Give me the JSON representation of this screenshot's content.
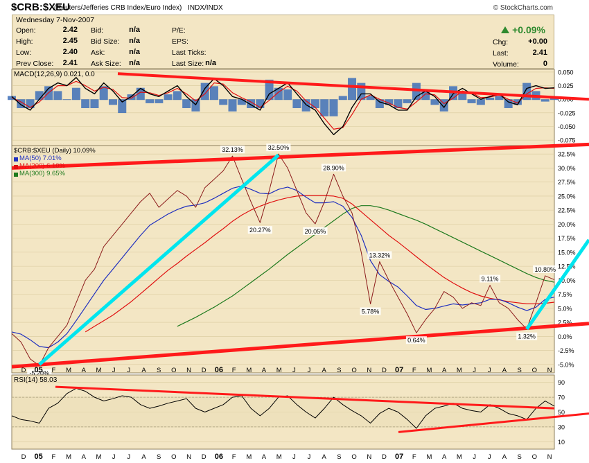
{
  "header": {
    "symbol": "$CRB:$XEU",
    "description": "(Reuters/Jefferies CRB Index/Euro Index)",
    "exchange": "INDX/INDX",
    "brand": "© StockCharts.com",
    "date": "Wednesday  7-Nov-2007"
  },
  "stats": {
    "open_label": "Open:",
    "open": "2.42",
    "high_label": "High:",
    "high": "2.45",
    "low_label": "Low:",
    "low": "2.40",
    "prev_close_label": "Prev Close:",
    "prev_close": "2.41",
    "bid_label": "Bid:",
    "bid": "n/a",
    "bid_size_label": "Bid Size:",
    "bid_size": "n/a",
    "ask_label": "Ask:",
    "ask": "n/a",
    "ask_size_label": "Ask Size:",
    "ask_size": "n/a",
    "pe_label": "P/E:",
    "eps_label": "EPS:",
    "last_ticks_label": "Last Ticks:",
    "last_size_label": "Last Size:",
    "last_size": "n/a",
    "pct_change": "+0.09%",
    "chg_label": "Chg:",
    "chg": "+0.00",
    "last_label": "Last:",
    "last": "2.41",
    "volume_label": "Volume:",
    "volume": "0"
  },
  "colors": {
    "panel_bg": "#f3e6c4",
    "price": "#8b1a1a",
    "ma50": "#1f2fbf",
    "ma200": "#e01010",
    "ma300": "#1e7a1e",
    "trendline_red": "#ff1a1a",
    "trendline_cyan": "#00e5ee",
    "macd_hist": "#3d6fb8",
    "rsi_line": "#000000",
    "gain": "#2f8a2f"
  },
  "chart_data": [
    {
      "type": "line",
      "panel": "MACD",
      "label": "MACD(12,26,9) 0.021, 0.0",
      "ylim": [
        -0.085,
        0.055
      ],
      "y_ticks": [
        "0.050",
        "0.025",
        "0.000",
        "-0.025",
        "-0.050",
        "-0.075"
      ],
      "y_tick_values": [
        0.05,
        0.025,
        0.0,
        -0.025,
        -0.05,
        -0.075
      ],
      "series": [
        {
          "values": [
            0.005,
            -0.01,
            -0.02,
            0.0,
            0.02,
            0.03,
            0.025,
            0.04,
            0.02,
            0.01,
            0.03,
            0.015,
            -0.005,
            0.005,
            0.02,
            0.01,
            0.005,
            0.015,
            0.025,
            0.005,
            -0.01,
            0.02,
            0.038,
            0.025,
            0.005,
            0.0,
            -0.01,
            -0.02,
            0.01,
            0.02,
            0.03,
            0.01,
            -0.01,
            -0.02,
            -0.045,
            -0.065,
            -0.05,
            -0.015,
            0.01,
            0.01,
            -0.005,
            -0.01,
            -0.02,
            -0.02,
            0.005,
            0.015,
            0.005,
            -0.015,
            0.01,
            0.02,
            0.01,
            0.0,
            0.005,
            0.01,
            -0.005,
            -0.01,
            0.02,
            0.025,
            0.02,
            0.021
          ]
        },
        {
          "values": [
            0.003,
            -0.005,
            -0.015,
            -0.005,
            0.012,
            0.025,
            0.025,
            0.033,
            0.025,
            0.015,
            0.022,
            0.018,
            0.003,
            0.002,
            0.013,
            0.012,
            0.007,
            0.012,
            0.02,
            0.01,
            -0.003,
            0.01,
            0.03,
            0.028,
            0.012,
            0.003,
            -0.005,
            -0.015,
            -0.002,
            0.013,
            0.024,
            0.015,
            -0.003,
            -0.015,
            -0.035,
            -0.055,
            -0.052,
            -0.028,
            0.0,
            0.008,
            0.0,
            -0.007,
            -0.015,
            -0.018,
            -0.005,
            0.01,
            0.008,
            -0.008,
            0.002,
            0.015,
            0.012,
            0.003,
            0.004,
            0.008,
            0.0,
            -0.007,
            0.01,
            0.02,
            0.021,
            0.02
          ]
        }
      ]
    },
    {
      "type": "line",
      "panel": "Price",
      "label": "$CRB:$XEU (Daily) 10.09%",
      "ylim": [
        -6.5,
        34
      ],
      "y_ticks": [
        "32.5%",
        "30.0%",
        "27.5%",
        "25.0%",
        "22.5%",
        "20.0%",
        "17.5%",
        "15.0%",
        "12.5%",
        "10.0%",
        "7.5%",
        "5.0%",
        "2.5%",
        "0.0%",
        "-2.5%",
        "-5.0%"
      ],
      "y_tick_values": [
        32.5,
        30.0,
        27.5,
        25.0,
        22.5,
        20.0,
        17.5,
        15.0,
        12.5,
        10.0,
        7.5,
        5.0,
        2.5,
        0.0,
        -2.5,
        -5.0
      ],
      "x_ticks": [
        "D",
        "05",
        "F",
        "M",
        "A",
        "M",
        "J",
        "J",
        "A",
        "S",
        "O",
        "N",
        "D",
        "06",
        "F",
        "M",
        "A",
        "M",
        "J",
        "J",
        "A",
        "S",
        "O",
        "N",
        "D",
        "07",
        "F",
        "M",
        "A",
        "M",
        "J",
        "J",
        "A",
        "S",
        "O",
        "N"
      ],
      "series": [
        {
          "name": "$CRB:$XEU (Daily) 10.09%",
          "values": [
            0.5,
            -1.0,
            -4.0,
            -5.2,
            -2.0,
            0.0,
            2.0,
            6.0,
            10.0,
            12.0,
            16.0,
            18.0,
            20.0,
            22.0,
            24.0,
            25.5,
            23.0,
            24.5,
            26.0,
            25.0,
            23.0,
            26.5,
            28.0,
            29.5,
            32.13,
            28.0,
            24.0,
            20.27,
            26.0,
            32.5,
            30.0,
            26.0,
            22.0,
            20.05,
            24.0,
            28.9,
            25.0,
            22.0,
            15.0,
            5.78,
            13.32,
            10.0,
            7.0,
            4.0,
            0.64,
            3.0,
            5.0,
            8.0,
            7.0,
            5.0,
            6.0,
            5.5,
            9.11,
            6.0,
            5.0,
            3.0,
            1.32,
            6.0,
            10.8,
            10.09
          ]
        },
        {
          "name": "MA(50) 7.01%",
          "values": [
            0.8,
            0.4,
            -0.6,
            -1.8,
            -2.0,
            -1.0,
            0.5,
            2.8,
            5.2,
            7.6,
            10.0,
            12.0,
            14.0,
            16.0,
            18.0,
            19.8,
            20.8,
            21.8,
            22.6,
            23.2,
            23.4,
            23.8,
            24.6,
            25.5,
            26.4,
            26.8,
            26.2,
            25.5,
            25.4,
            26.2,
            26.6,
            26.0,
            24.8,
            23.8,
            23.8,
            24.0,
            23.2,
            21.2,
            18.0,
            13.5,
            11.0,
            9.8,
            8.8,
            7.2,
            5.5,
            4.8,
            5.0,
            5.4,
            5.8,
            5.6,
            5.8,
            6.0,
            6.6,
            6.6,
            6.0,
            5.2,
            4.6,
            5.2,
            6.6,
            7.01
          ]
        },
        {
          "name": "MA(200) 6.10%",
          "values": [
            null,
            null,
            null,
            null,
            null,
            null,
            null,
            null,
            0.8,
            1.8,
            2.8,
            3.8,
            5.0,
            6.2,
            7.6,
            9.0,
            10.4,
            11.8,
            13.0,
            14.3,
            15.5,
            16.7,
            18.0,
            19.2,
            20.5,
            21.6,
            22.5,
            23.2,
            23.8,
            24.3,
            24.7,
            25.0,
            25.1,
            25.1,
            25.1,
            25.0,
            24.6,
            23.6,
            22.2,
            20.8,
            19.4,
            18.0,
            16.8,
            15.5,
            14.2,
            12.9,
            11.7,
            10.5,
            9.5,
            8.6,
            7.8,
            7.2,
            6.8,
            6.5,
            6.2,
            6.0,
            5.8,
            5.8,
            5.9,
            6.1
          ]
        },
        {
          "name": "MA(300) 9.65%",
          "values": [
            null,
            null,
            null,
            null,
            null,
            null,
            null,
            null,
            null,
            null,
            null,
            null,
            null,
            null,
            null,
            null,
            null,
            null,
            1.8,
            2.6,
            3.4,
            4.3,
            5.2,
            6.2,
            7.2,
            8.4,
            9.6,
            10.8,
            12.0,
            13.3,
            14.6,
            15.8,
            17.0,
            18.2,
            19.4,
            20.6,
            21.8,
            22.8,
            23.3,
            23.3,
            23.0,
            22.5,
            21.9,
            21.3,
            20.7,
            20.0,
            19.2,
            18.4,
            17.6,
            16.8,
            16.0,
            15.2,
            14.4,
            13.6,
            12.8,
            12.0,
            11.2,
            10.5,
            10.0,
            9.65
          ]
        }
      ],
      "annotations": [
        "-5.20%",
        "32.13%",
        "32.50%",
        "28.90%",
        "20.27%",
        "20.05%",
        "13.32%",
        "5.78%",
        "0.64%",
        "9.11%",
        "1.32%",
        "10.80%"
      ]
    },
    {
      "type": "line",
      "panel": "RSI",
      "label": "RSI(14) 58.03",
      "ylim": [
        0,
        100
      ],
      "y_ticks": [
        "90",
        "70",
        "50",
        "30",
        "10"
      ],
      "y_tick_values": [
        90,
        70,
        50,
        30,
        10
      ],
      "series": [
        {
          "values": [
            45,
            40,
            38,
            35,
            55,
            62,
            75,
            82,
            78,
            70,
            65,
            68,
            72,
            70,
            60,
            55,
            58,
            62,
            65,
            68,
            55,
            50,
            55,
            60,
            70,
            72,
            55,
            45,
            55,
            70,
            72,
            60,
            50,
            42,
            55,
            70,
            60,
            52,
            45,
            35,
            48,
            55,
            50,
            40,
            28,
            45,
            55,
            58,
            62,
            55,
            52,
            50,
            60,
            55,
            48,
            45,
            40,
            55,
            65,
            58
          ]
        }
      ]
    }
  ]
}
